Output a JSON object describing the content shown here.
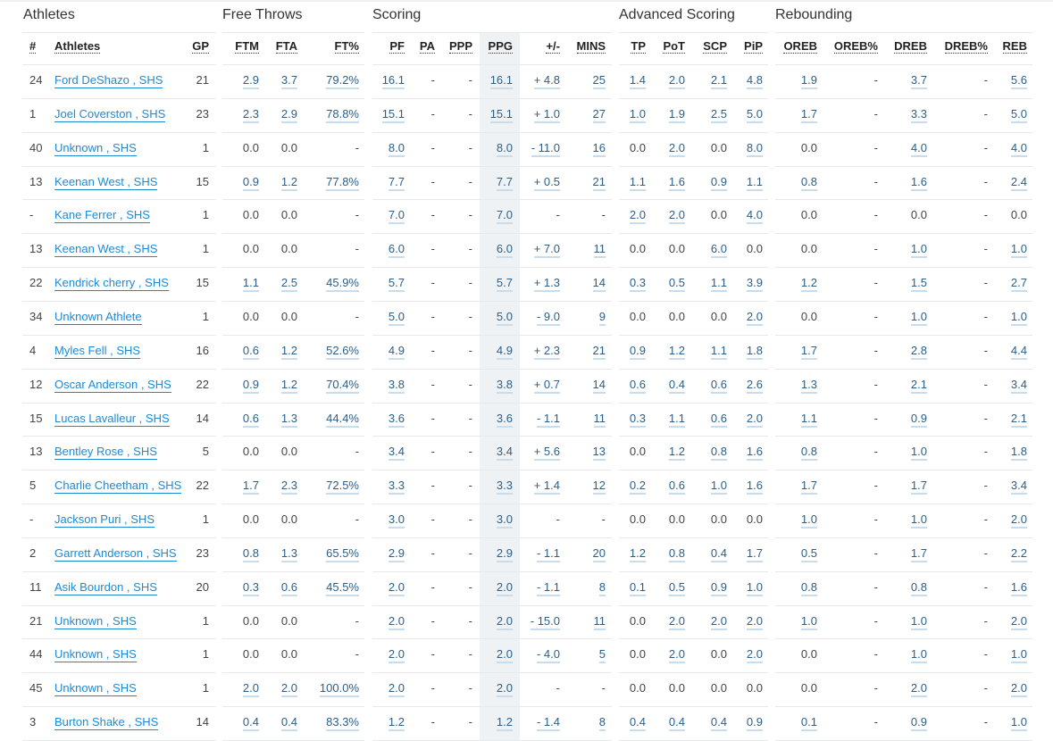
{
  "groups": [
    {
      "title": "Athletes",
      "columns": [
        "#",
        "Athletes",
        "GP"
      ]
    },
    {
      "title": "Free Throws",
      "columns": [
        "FTM",
        "FTA",
        "FT%"
      ]
    },
    {
      "title": "Scoring",
      "columns": [
        "PF",
        "PA",
        "PPP",
        "PPG",
        "+/-",
        "MINS"
      ]
    },
    {
      "title": "Advanced Scoring",
      "columns": [
        "TP",
        "PoT",
        "SCP",
        "PiP"
      ]
    },
    {
      "title": "Rebounding",
      "columns": [
        "OREB",
        "OREB%",
        "DREB",
        "DREB%",
        "REB"
      ]
    }
  ],
  "highlighted_column": "PPG",
  "colors": {
    "link": "#1e8ad6",
    "value": "#2b5f8a",
    "highlight_band": "#eef2f5"
  },
  "rows": [
    [
      "24",
      "Ford DeShazo , SHS",
      "21",
      "2.9",
      "3.7",
      "79.2%",
      "16.1",
      "-",
      "-",
      "16.1",
      "+ 4.8",
      "25",
      "1.4",
      "2.0",
      "2.1",
      "4.8",
      "1.9",
      "-",
      "3.7",
      "-",
      "5.6"
    ],
    [
      "1",
      "Joel Coverston , SHS",
      "23",
      "2.3",
      "2.9",
      "78.8%",
      "15.1",
      "-",
      "-",
      "15.1",
      "+ 1.0",
      "27",
      "1.0",
      "1.9",
      "2.5",
      "5.0",
      "1.7",
      "-",
      "3.3",
      "-",
      "5.0"
    ],
    [
      "40",
      "Unknown , SHS",
      "1",
      "0.0",
      "0.0",
      "-",
      "8.0",
      "-",
      "-",
      "8.0",
      "- 11.0",
      "16",
      "0.0",
      "2.0",
      "0.0",
      "8.0",
      "0.0",
      "-",
      "4.0",
      "-",
      "4.0"
    ],
    [
      "13",
      "Keenan West , SHS",
      "15",
      "0.9",
      "1.2",
      "77.8%",
      "7.7",
      "-",
      "-",
      "7.7",
      "+ 0.5",
      "21",
      "1.1",
      "1.6",
      "0.9",
      "1.1",
      "0.8",
      "-",
      "1.6",
      "-",
      "2.4"
    ],
    [
      "-",
      "Kane Ferrer , SHS",
      "1",
      "0.0",
      "0.0",
      "-",
      "7.0",
      "-",
      "-",
      "7.0",
      "-",
      "-",
      "2.0",
      "2.0",
      "0.0",
      "4.0",
      "0.0",
      "-",
      "0.0",
      "-",
      "0.0"
    ],
    [
      "13",
      "Keenan West , SHS",
      "1",
      "0.0",
      "0.0",
      "-",
      "6.0",
      "-",
      "-",
      "6.0",
      "+ 7.0",
      "11",
      "0.0",
      "0.0",
      "6.0",
      "0.0",
      "0.0",
      "-",
      "1.0",
      "-",
      "1.0"
    ],
    [
      "22",
      "Kendrick cherry , SHS",
      "15",
      "1.1",
      "2.5",
      "45.9%",
      "5.7",
      "-",
      "-",
      "5.7",
      "+ 1.3",
      "14",
      "0.3",
      "0.5",
      "1.1",
      "3.9",
      "1.2",
      "-",
      "1.5",
      "-",
      "2.7"
    ],
    [
      "34",
      "Unknown Athlete",
      "1",
      "0.0",
      "0.0",
      "-",
      "5.0",
      "-",
      "-",
      "5.0",
      "- 9.0",
      "9",
      "0.0",
      "0.0",
      "0.0",
      "2.0",
      "0.0",
      "-",
      "1.0",
      "-",
      "1.0"
    ],
    [
      "4",
      "Myles Fell , SHS",
      "16",
      "0.6",
      "1.2",
      "52.6%",
      "4.9",
      "-",
      "-",
      "4.9",
      "+ 2.3",
      "21",
      "0.9",
      "1.2",
      "1.1",
      "1.8",
      "1.7",
      "-",
      "2.8",
      "-",
      "4.4"
    ],
    [
      "12",
      "Oscar Anderson , SHS",
      "22",
      "0.9",
      "1.2",
      "70.4%",
      "3.8",
      "-",
      "-",
      "3.8",
      "+ 0.7",
      "14",
      "0.6",
      "0.4",
      "0.6",
      "2.6",
      "1.3",
      "-",
      "2.1",
      "-",
      "3.4"
    ],
    [
      "15",
      "Lucas Lavalleur , SHS",
      "14",
      "0.6",
      "1.3",
      "44.4%",
      "3.6",
      "-",
      "-",
      "3.6",
      "- 1.1",
      "11",
      "0.3",
      "1.1",
      "0.6",
      "2.0",
      "1.1",
      "-",
      "0.9",
      "-",
      "2.1"
    ],
    [
      "13",
      "Bentley Rose , SHS",
      "5",
      "0.0",
      "0.0",
      "-",
      "3.4",
      "-",
      "-",
      "3.4",
      "+ 5.6",
      "13",
      "0.0",
      "1.2",
      "0.8",
      "1.6",
      "0.8",
      "-",
      "1.0",
      "-",
      "1.8"
    ],
    [
      "5",
      "Charlie Cheetham , SHS",
      "22",
      "1.7",
      "2.3",
      "72.5%",
      "3.3",
      "-",
      "-",
      "3.3",
      "+ 1.4",
      "12",
      "0.2",
      "0.6",
      "1.0",
      "1.6",
      "1.7",
      "-",
      "1.7",
      "-",
      "3.4"
    ],
    [
      "-",
      "Jackson Puri , SHS",
      "1",
      "0.0",
      "0.0",
      "-",
      "3.0",
      "-",
      "-",
      "3.0",
      "-",
      "-",
      "0.0",
      "0.0",
      "0.0",
      "0.0",
      "1.0",
      "-",
      "1.0",
      "-",
      "2.0"
    ],
    [
      "2",
      "Garrett Anderson , SHS",
      "23",
      "0.8",
      "1.3",
      "65.5%",
      "2.9",
      "-",
      "-",
      "2.9",
      "- 1.1",
      "20",
      "1.2",
      "0.8",
      "0.4",
      "1.7",
      "0.5",
      "-",
      "1.7",
      "-",
      "2.2"
    ],
    [
      "11",
      "Asik Bourdon , SHS",
      "20",
      "0.3",
      "0.6",
      "45.5%",
      "2.0",
      "-",
      "-",
      "2.0",
      "- 1.1",
      "8",
      "0.1",
      "0.5",
      "0.9",
      "1.0",
      "0.8",
      "-",
      "0.8",
      "-",
      "1.6"
    ],
    [
      "21",
      "Unknown , SHS",
      "1",
      "0.0",
      "0.0",
      "-",
      "2.0",
      "-",
      "-",
      "2.0",
      "- 15.0",
      "11",
      "0.0",
      "2.0",
      "2.0",
      "2.0",
      "1.0",
      "-",
      "1.0",
      "-",
      "2.0"
    ],
    [
      "44",
      "Unknown , SHS",
      "1",
      "0.0",
      "0.0",
      "-",
      "2.0",
      "-",
      "-",
      "2.0",
      "- 4.0",
      "5",
      "0.0",
      "2.0",
      "0.0",
      "2.0",
      "0.0",
      "-",
      "1.0",
      "-",
      "1.0"
    ],
    [
      "45",
      "Unknown , SHS",
      "1",
      "2.0",
      "2.0",
      "100.0%",
      "2.0",
      "-",
      "-",
      "2.0",
      "-",
      "-",
      "0.0",
      "0.0",
      "0.0",
      "0.0",
      "0.0",
      "-",
      "2.0",
      "-",
      "2.0"
    ],
    [
      "3",
      "Burton Shake , SHS",
      "14",
      "0.4",
      "0.4",
      "83.3%",
      "1.2",
      "-",
      "-",
      "1.2",
      "- 1.4",
      "8",
      "0.4",
      "0.4",
      "0.4",
      "0.9",
      "0.1",
      "-",
      "0.9",
      "-",
      "1.0"
    ]
  ]
}
